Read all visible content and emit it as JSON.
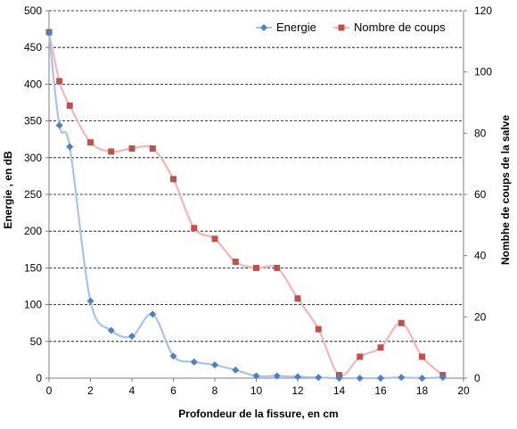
{
  "chart_data": {
    "type": "line",
    "xlabel": "Profondeur de la fissure, en cm",
    "ylabel_left": "Energie , en dB",
    "ylabel_right": "Nombhe de coups de la salve",
    "xlim": [
      0,
      20
    ],
    "ylim_left": [
      0,
      500
    ],
    "ylim_right": [
      0,
      120
    ],
    "x_ticks": [
      "0",
      "2",
      "4",
      "6",
      "8",
      "10",
      "12",
      "14",
      "16",
      "18",
      "20"
    ],
    "y_left_ticks": [
      "0",
      "50",
      "100",
      "150",
      "200",
      "250",
      "300",
      "350",
      "400",
      "450",
      "500"
    ],
    "y_right_ticks": [
      "0",
      "20",
      "40",
      "60",
      "80",
      "100",
      "120"
    ],
    "grid": "horizontal dashed",
    "legend_position": "top-right",
    "series": [
      {
        "name": "Energie",
        "axis": "left",
        "marker": "diamond",
        "color": "#4f81bd",
        "line_color": "#a9c4e4",
        "x": [
          0,
          0.5,
          1,
          2,
          3,
          4,
          5,
          6,
          7,
          8,
          9,
          10,
          11,
          12,
          13,
          14,
          15,
          16,
          17,
          18,
          19
        ],
        "values": [
          470,
          344,
          315,
          105,
          65,
          57,
          87,
          30,
          22,
          18,
          11,
          3,
          3,
          2,
          1,
          0,
          0,
          0,
          1,
          0,
          1
        ]
      },
      {
        "name": "Nombre de coups",
        "axis": "right",
        "marker": "square",
        "color": "#c0504d",
        "line_color": "#f4b6b4",
        "x": [
          0,
          0.5,
          1,
          2,
          3,
          4,
          5,
          6,
          7,
          8,
          9,
          10,
          11,
          12,
          13,
          14,
          15,
          16,
          17,
          18,
          19
        ],
        "values": [
          113,
          97,
          89,
          77,
          74,
          75,
          75,
          65,
          49,
          45.5,
          38,
          36,
          36,
          26,
          16,
          1,
          7,
          10,
          18,
          7,
          1
        ]
      }
    ]
  }
}
